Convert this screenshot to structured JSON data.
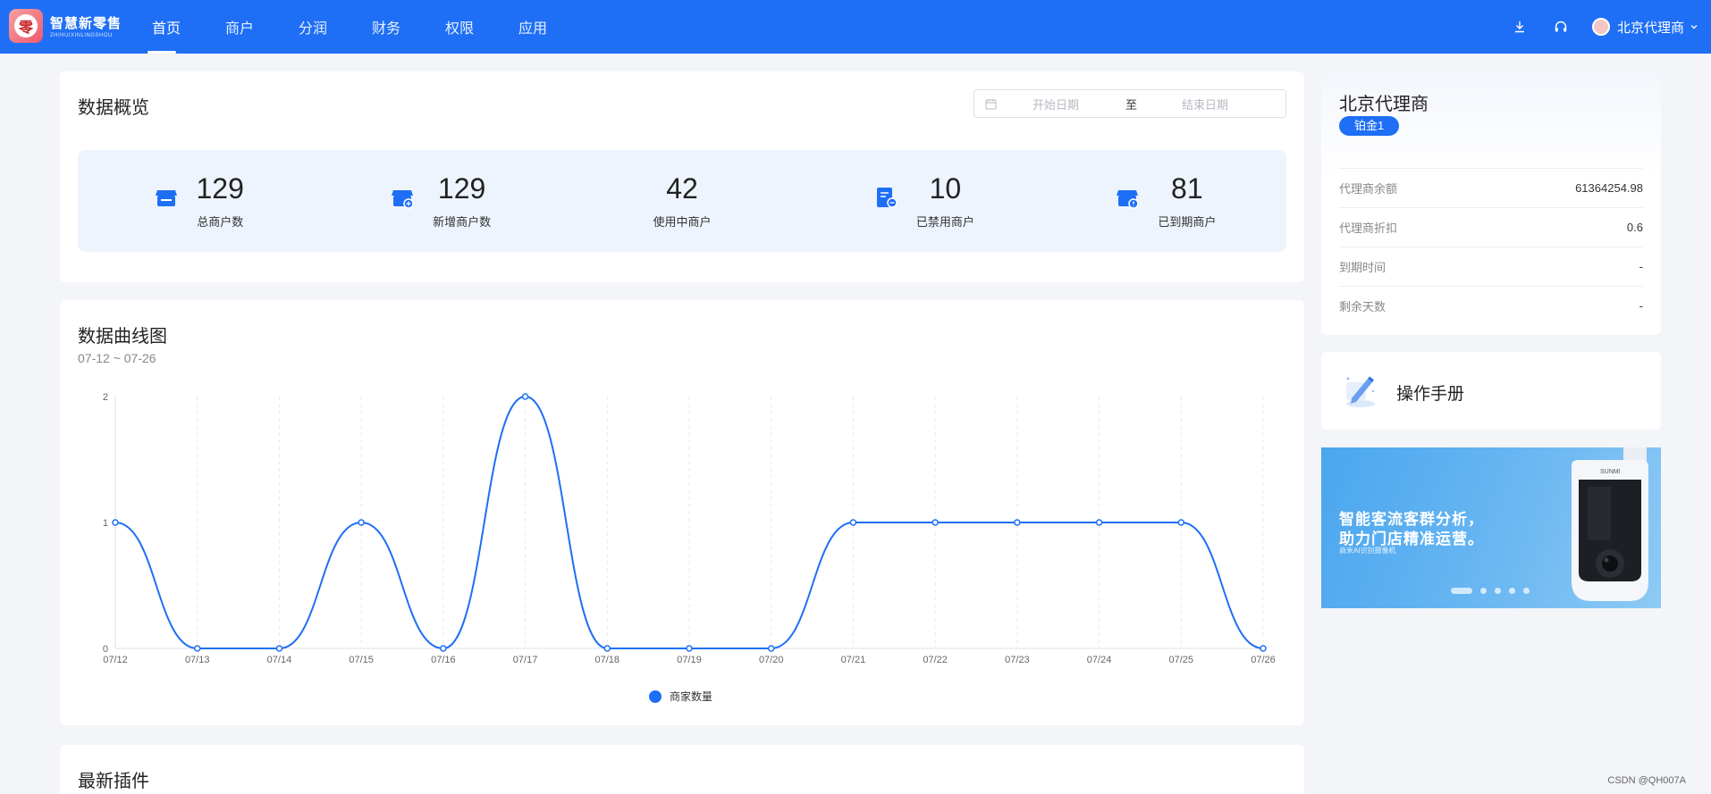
{
  "header": {
    "logo_cn": "智慧新零售",
    "logo_en": "ZHIHUIXINLINGSHOU",
    "nav": [
      {
        "label": "首页",
        "active": true
      },
      {
        "label": "商户",
        "active": false
      },
      {
        "label": "分润",
        "active": false
      },
      {
        "label": "财务",
        "active": false
      },
      {
        "label": "权限",
        "active": false
      },
      {
        "label": "应用",
        "active": false
      }
    ],
    "icons": [
      "download-icon",
      "headset-icon"
    ],
    "user_name": "北京代理商"
  },
  "overview": {
    "title": "数据概览",
    "date_start_placeholder": "开始日期",
    "date_separator": "至",
    "date_end_placeholder": "结束日期",
    "stats": [
      {
        "value": "129",
        "label": "总商户数",
        "icon": "store-icon"
      },
      {
        "value": "129",
        "label": "新增商户数",
        "icon": "store-add-icon"
      },
      {
        "value": "42",
        "label": "使用中商户",
        "icon": ""
      },
      {
        "value": "10",
        "label": "已禁用商户",
        "icon": "document-disabled-icon"
      },
      {
        "value": "81",
        "label": "已到期商户",
        "icon": "store-expired-icon"
      }
    ],
    "accent": "#1e6ff5"
  },
  "chart_card": {
    "title": "数据曲线图",
    "range": "07-12 ~ 07-26"
  },
  "chart_data": {
    "type": "line",
    "x": [
      "07/12",
      "07/13",
      "07/14",
      "07/15",
      "07/16",
      "07/17",
      "07/18",
      "07/19",
      "07/20",
      "07/21",
      "07/22",
      "07/23",
      "07/24",
      "07/25",
      "07/26"
    ],
    "series": [
      {
        "name": "商家数量",
        "values": [
          1,
          0,
          0,
          1,
          0,
          2,
          0,
          0,
          0,
          1,
          1,
          1,
          1,
          1,
          0
        ],
        "color": "#1e6ff5"
      }
    ],
    "yticks": [
      0,
      1,
      2
    ],
    "ylim": [
      0,
      2
    ],
    "xlabel": "",
    "ylabel": "",
    "grid": "vertical-dashed",
    "legend": "bottom-center",
    "smooth": true
  },
  "plugins": {
    "title": "最新插件"
  },
  "agent": {
    "name": "北京代理商",
    "level": "铂金1",
    "rows": [
      {
        "label": "代理商余额",
        "value": "61364254.98"
      },
      {
        "label": "代理商折扣",
        "value": "0.6"
      },
      {
        "label": "到期时间",
        "value": "-"
      },
      {
        "label": "剩余天数",
        "value": "-"
      }
    ]
  },
  "manual": {
    "title": "操作手册",
    "icon": "pen-edit-icon"
  },
  "banner": {
    "line1": "智能客流客群分析，",
    "line2": "助力门店精准运营。",
    "small": "商米AI识别摄像机",
    "brand": "SUNMI",
    "slides": 5,
    "active_slide": 0
  },
  "watermark": "CSDN @QH007A"
}
